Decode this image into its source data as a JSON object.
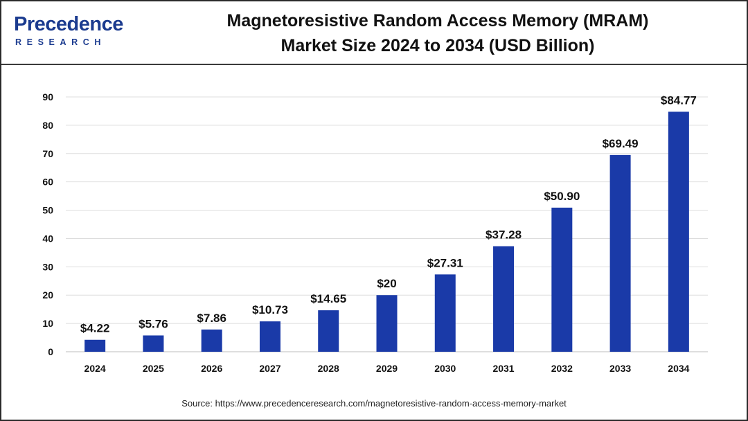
{
  "header": {
    "logo_word": "recedence",
    "logo_initial": "P",
    "logo_sub": "RESEARCH",
    "title_line1": "Magnetoresistive Random Access Memory (MRAM)",
    "title_line2": "Market Size 2024 to 2034 (USD Billion)"
  },
  "colors": {
    "bar": "#1a3aa8",
    "logo": "#1b3b8f",
    "grid": "#dddddd"
  },
  "chart_data": {
    "type": "bar",
    "title": "Magnetoresistive Random Access Memory (MRAM) Market Size 2024 to 2034 (USD Billion)",
    "categories": [
      "2024",
      "2025",
      "2026",
      "2027",
      "2028",
      "2029",
      "2030",
      "2031",
      "2032",
      "2033",
      "2034"
    ],
    "values": [
      4.22,
      5.76,
      7.86,
      10.73,
      14.65,
      20,
      27.31,
      37.28,
      50.9,
      69.49,
      84.77
    ],
    "labels": [
      "$4.22",
      "$5.76",
      "$7.86",
      "$10.73",
      "$14.65",
      "$20",
      "$27.31",
      "$37.28",
      "$50.90",
      "$69.49",
      "$84.77"
    ],
    "yticks": [
      "0",
      "10",
      "20",
      "30",
      "40",
      "50",
      "60",
      "70",
      "80",
      "90"
    ],
    "ylim": [
      0,
      90
    ],
    "grid": true,
    "legend": "none"
  },
  "source": "Source: https://www.precedenceresearch.com/magnetoresistive-random-access-memory-market"
}
